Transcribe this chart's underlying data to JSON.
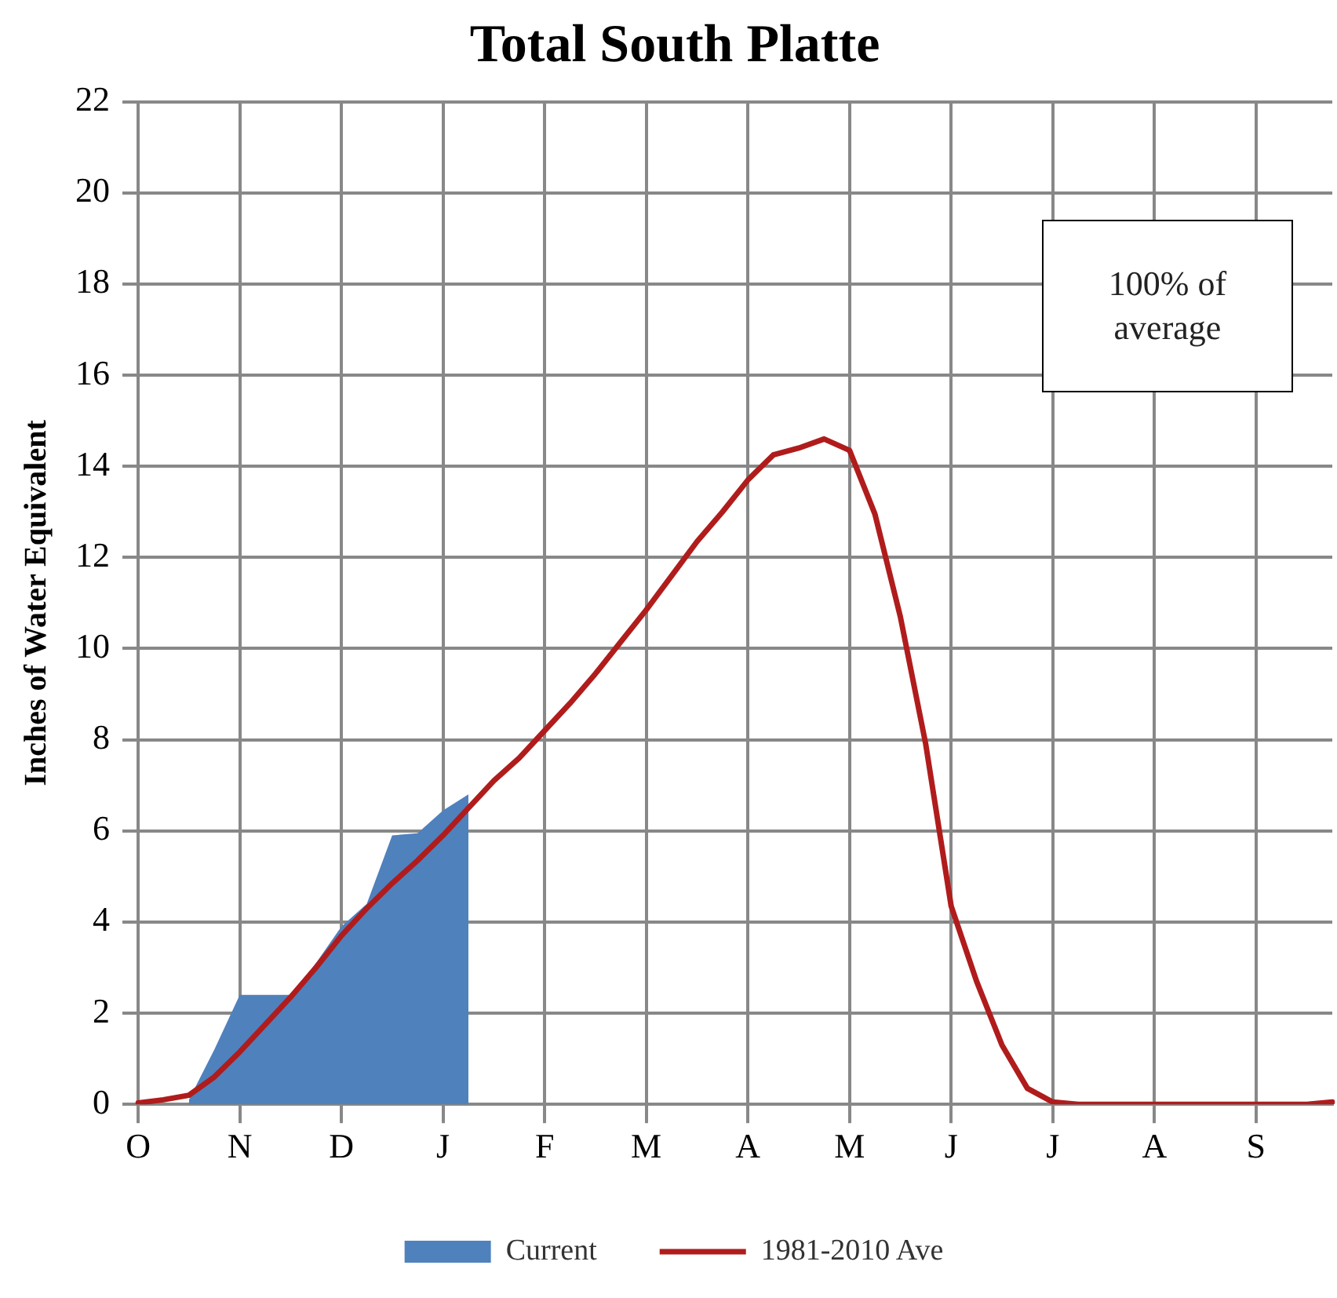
{
  "chart_data": {
    "type": "area",
    "title": "Total South Platte",
    "ylabel": "Inches of Water Equivalent",
    "categories": [
      "O",
      null,
      null,
      null,
      "N",
      null,
      null,
      null,
      "D",
      null,
      null,
      null,
      "J",
      null,
      null,
      null,
      "F",
      null,
      null,
      null,
      "M",
      null,
      null,
      null,
      "A",
      null,
      null,
      null,
      "M",
      null,
      null,
      null,
      "J",
      null,
      null,
      null,
      "J",
      null,
      null,
      null,
      "A",
      null,
      null,
      null,
      "S",
      null,
      null,
      null
    ],
    "ylim": [
      0,
      22
    ],
    "yticks": [
      0,
      2,
      4,
      6,
      8,
      10,
      12,
      14,
      16,
      18,
      20,
      22
    ],
    "grid": true,
    "legend": "bottom",
    "marker": "none",
    "annotations": [
      "100% of average"
    ],
    "series": [
      {
        "name": "Current",
        "color": "#4f81bd",
        "values": [
          null,
          null,
          0.1,
          1.2,
          2.4,
          2.4,
          2.4,
          3.1,
          3.9,
          4.4,
          5.9,
          5.95,
          6.45,
          6.8,
          null,
          null,
          null,
          null,
          null,
          null,
          null,
          null,
          null,
          null,
          null,
          null,
          null,
          null,
          null,
          null,
          null,
          null,
          null,
          null,
          null,
          null,
          null,
          null,
          null,
          null,
          null,
          null,
          null,
          null,
          null,
          null,
          null,
          null
        ]
      },
      {
        "name": "1981-2010 Ave",
        "type": "line",
        "color": "#b01c1c",
        "values": [
          0.03,
          0.1,
          0.2,
          0.6,
          1.15,
          1.75,
          2.35,
          3.0,
          3.7,
          4.3,
          4.85,
          5.35,
          5.9,
          6.5,
          7.1,
          7.6,
          8.2,
          8.8,
          9.45,
          10.15,
          10.85,
          11.6,
          12.35,
          13.0,
          13.7,
          14.25,
          14.4,
          14.6,
          14.35,
          12.95,
          10.7,
          7.9,
          4.35,
          2.7,
          1.3,
          0.35,
          0.05,
          0,
          0,
          0,
          0,
          0,
          0,
          0,
          0,
          0,
          0,
          0.05
        ]
      }
    ]
  }
}
